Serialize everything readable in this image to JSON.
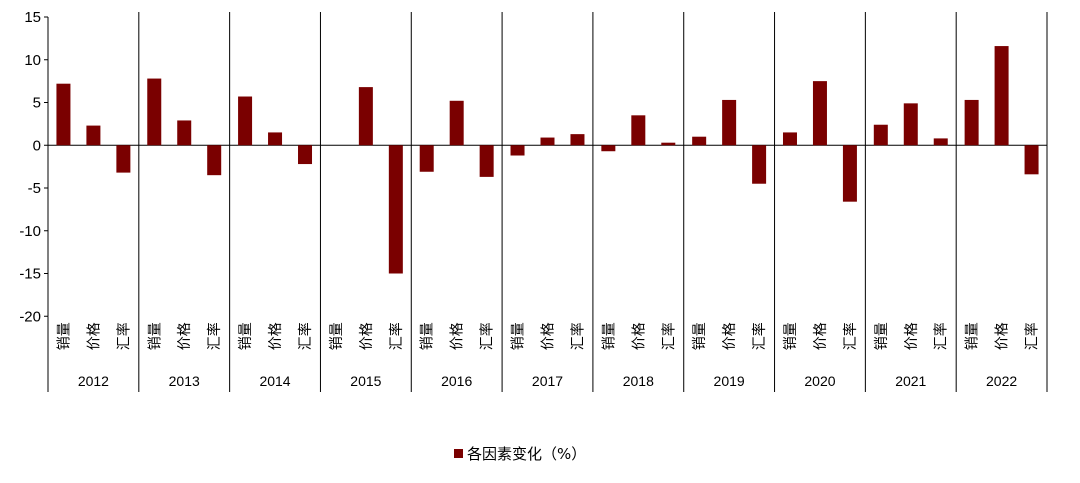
{
  "colors": {
    "bar": "#7a0000",
    "axis": "#000000",
    "gridline": "#000000"
  },
  "legend": {
    "label": "各因素变化（%）"
  },
  "chart_data": {
    "type": "bar",
    "categories_per_group": [
      "销量",
      "价格",
      "汇率"
    ],
    "groups": [
      "2012",
      "2013",
      "2014",
      "2015",
      "2016",
      "2017",
      "2018",
      "2019",
      "2020",
      "2021",
      "2022"
    ],
    "series": [
      {
        "name": "各因素变化（%）",
        "values": [
          [
            7.2,
            2.3,
            -3.2
          ],
          [
            7.8,
            2.9,
            -3.5
          ],
          [
            5.7,
            1.5,
            -2.2
          ],
          [
            0,
            6.8,
            -15.0
          ],
          [
            -3.1,
            5.2,
            -3.7
          ],
          [
            -1.2,
            0.9,
            1.3
          ],
          [
            -0.7,
            3.5,
            0.3
          ],
          [
            1.0,
            5.3,
            -4.5
          ],
          [
            1.5,
            7.5,
            -6.6
          ],
          [
            2.4,
            4.9,
            0.8
          ],
          [
            5.3,
            11.6,
            -3.4
          ]
        ]
      }
    ],
    "yticks": [
      15,
      10,
      5,
      0,
      -5,
      -10,
      -15,
      -20
    ],
    "ylim": [
      -20,
      15
    ],
    "grid": false,
    "legend_position": "bottom"
  }
}
